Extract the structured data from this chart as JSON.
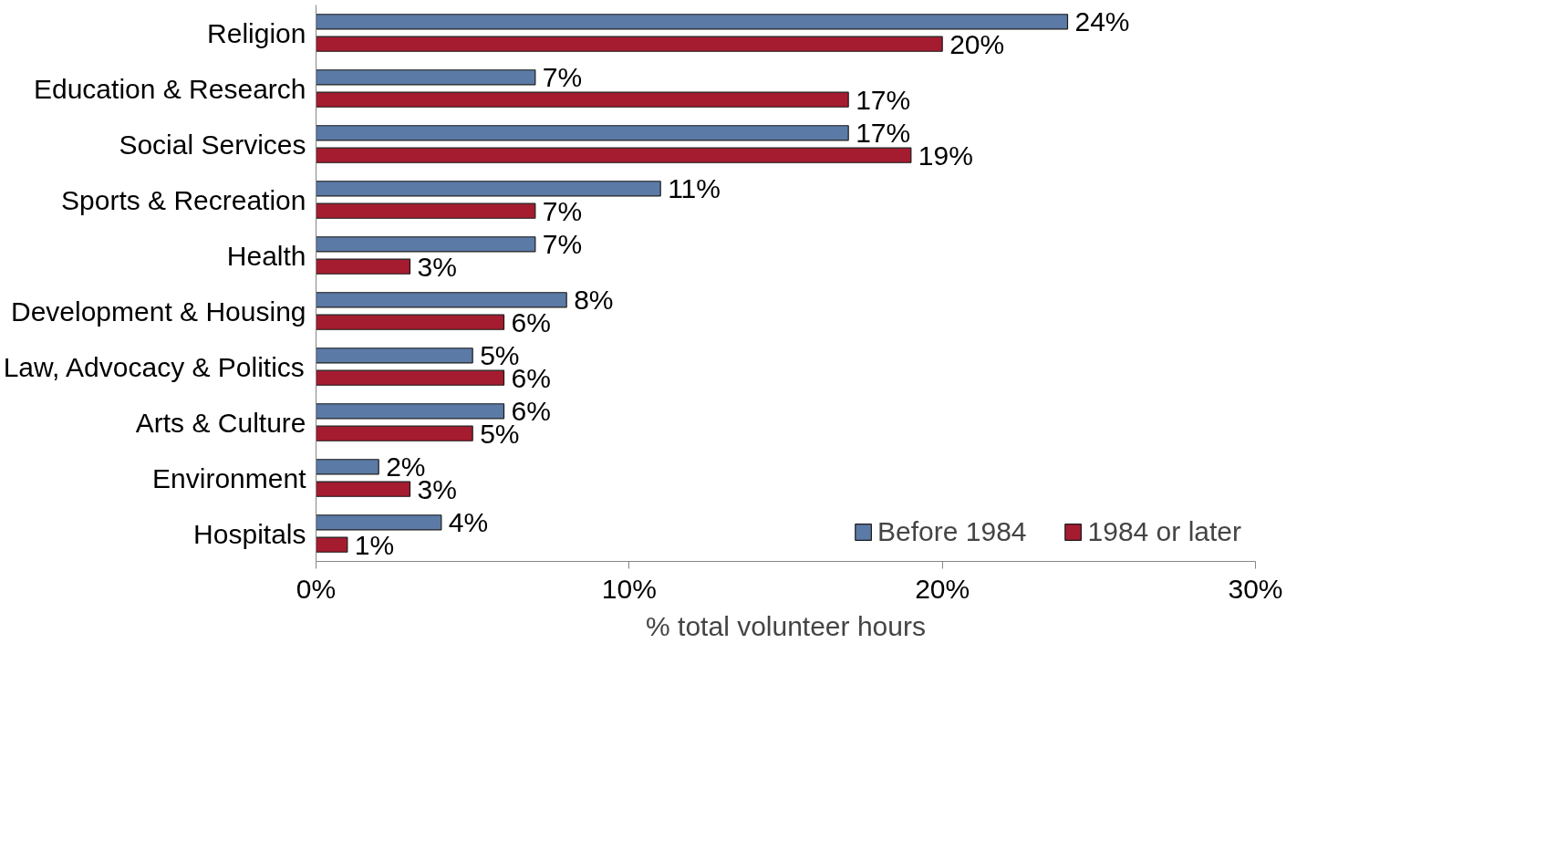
{
  "chart_data": {
    "type": "bar",
    "orientation": "horizontal",
    "xlabel": "% total volunteer hours",
    "categories": [
      "Religion",
      "Education & Research",
      "Social Services",
      "Sports & Recreation",
      "Health",
      "Development & Housing",
      "Law, Advocacy & Politics",
      "Arts & Culture",
      "Environment",
      "Hospitals"
    ],
    "series": [
      {
        "name": "Before 1984",
        "color": "#5b7aa6",
        "values": [
          24,
          7,
          17,
          11,
          7,
          8,
          5,
          6,
          2,
          4
        ],
        "value_labels": [
          "24%",
          "7%",
          "17%",
          "11%",
          "7%",
          "8%",
          "5%",
          "6%",
          "2%",
          "4%"
        ]
      },
      {
        "name": "1984 or later",
        "color": "#a51c30",
        "values": [
          20,
          17,
          19,
          7,
          3,
          6,
          6,
          5,
          3,
          1
        ],
        "value_labels": [
          "20%",
          "17%",
          "19%",
          "7%",
          "3%",
          "6%",
          "6%",
          "5%",
          "3%",
          "1%"
        ]
      }
    ],
    "xlim": [
      0,
      30
    ],
    "xticks": [
      {
        "value": 0,
        "label": "0%"
      },
      {
        "value": 10,
        "label": "10%"
      },
      {
        "value": 20,
        "label": "20%"
      },
      {
        "value": 30,
        "label": "30%"
      }
    ],
    "grid": false,
    "legend": "bottom"
  }
}
